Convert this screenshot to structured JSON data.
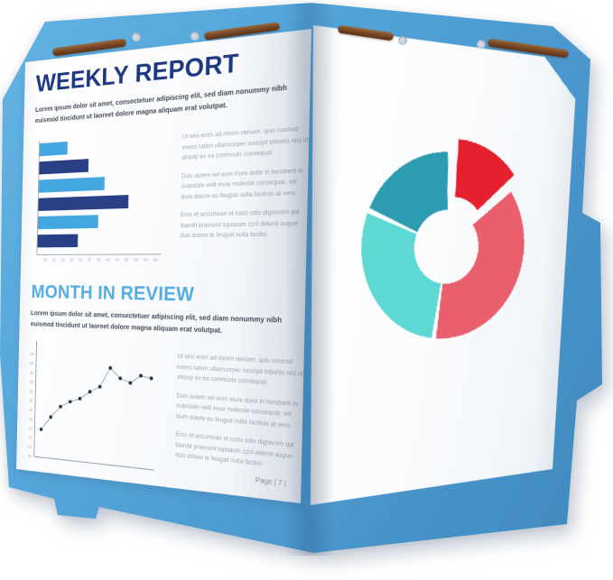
{
  "colors": {
    "folder_blue": "#4f9fd5",
    "fastener_brown": "#7b4a26",
    "title_navy": "#1d3880",
    "section_blue": "#54ade2",
    "page_white": "#fafbfd"
  },
  "left_page": {
    "title": "WEEKLY REPORT",
    "intro": "Lorem ipsum dolor sit amet, consectetuer adipiscing elit, sed diam nonummy nibh euismod tincidunt ut laoreet dolore magna aliquam erat volutpat.",
    "section_title": "MONTH IN REVIEW",
    "body_paragraphs": [
      "Ut wisi enim ad minim veniam, quis nostrud exerci tation ullamcorper suscipit lobortis nisl ut aliquip ex ea commodo consequat.",
      "Duis autem vel eum iriure dolor in hendrerit in vulputate velit esse molestie consequat, vel illum dolore eu feugiat nulla facilisis at vero.",
      "Eros et accumsan et iusto odio dignissim qui blandit praesent luptatum zzril delenit augue duis dolore te feugait nulla facilisi."
    ],
    "footer": "Page | 7 |"
  },
  "chart_data": [
    {
      "id": "weekly-bar-chart",
      "type": "bar",
      "orientation": "horizontal",
      "values": [
        16,
        28,
        37,
        50,
        34,
        23
      ],
      "bar_colors": [
        "#45a7e0",
        "#2a3f85",
        "#45a7e0",
        "#2a3f85",
        "#45a7e0",
        "#2a3f85"
      ],
      "xlim": [
        0,
        65
      ],
      "x_ticks": [
        "05",
        "10",
        "15",
        "20",
        "25",
        "30",
        "35",
        "40",
        "45",
        "50",
        "55",
        "60",
        "65"
      ],
      "title": "",
      "xlabel": "",
      "ylabel": "",
      "grid": false,
      "legend": false
    },
    {
      "id": "monthly-line-chart",
      "type": "line",
      "x": [
        1,
        2,
        3,
        4,
        5,
        6,
        7,
        8,
        9,
        10,
        11,
        12
      ],
      "values": [
        15,
        22,
        28,
        31,
        33,
        37,
        40,
        50,
        45,
        43,
        47,
        46
      ],
      "ylim": [
        0,
        57
      ],
      "y_ticks": [
        "00",
        "05",
        "10",
        "15",
        "20",
        "25",
        "30",
        "35",
        "40",
        "45",
        "50",
        "55"
      ],
      "line_color": "#8fa6b2",
      "marker_color": "#2b313d",
      "title": "",
      "xlabel": "",
      "ylabel": "",
      "grid": false,
      "legend": false
    },
    {
      "id": "donut-chart",
      "type": "pie",
      "donut": true,
      "segments": [
        {
          "label": "segment-1",
          "value": 14,
          "color": "#e5212f",
          "exploded": true
        },
        {
          "label": "segment-2",
          "value": 38,
          "color": "#ea5f6e",
          "exploded": false
        },
        {
          "label": "segment-3",
          "value": 29,
          "color": "#5ed8d2",
          "exploded": false
        },
        {
          "label": "segment-4",
          "value": 19,
          "color": "#2d9cb0",
          "exploded": false
        }
      ],
      "start_angle_deg": 0,
      "clockwise": true,
      "title": "",
      "legend": false
    }
  ]
}
